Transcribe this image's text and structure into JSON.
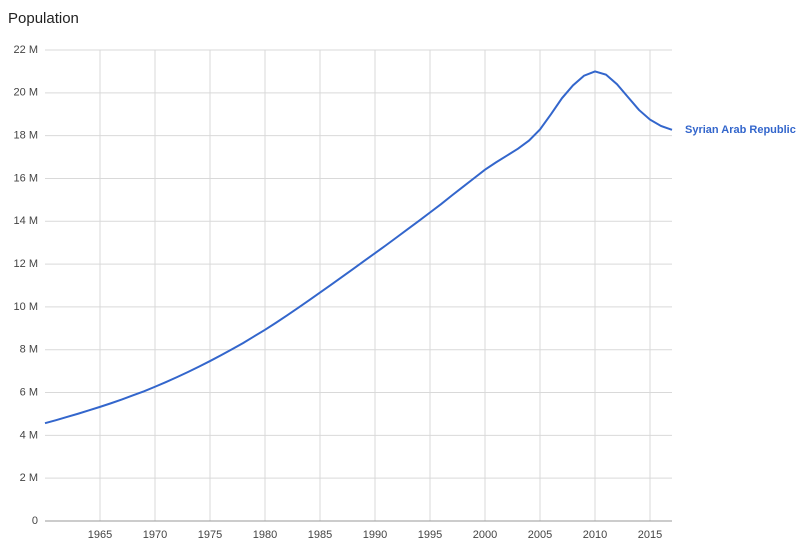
{
  "chart_data": {
    "type": "line",
    "title": "Population",
    "x": [
      1960,
      1961,
      1962,
      1963,
      1964,
      1965,
      1966,
      1967,
      1968,
      1969,
      1970,
      1971,
      1972,
      1973,
      1974,
      1975,
      1976,
      1977,
      1978,
      1979,
      1980,
      1981,
      1982,
      1983,
      1984,
      1985,
      1986,
      1987,
      1988,
      1989,
      1990,
      1991,
      1992,
      1993,
      1994,
      1995,
      1996,
      1997,
      1998,
      1999,
      2000,
      2001,
      2002,
      2003,
      2004,
      2005,
      2006,
      2007,
      2008,
      2009,
      2010,
      2011,
      2012,
      2013,
      2014,
      2015,
      2016,
      2017
    ],
    "series": [
      {
        "name": "Syrian Arab Republic",
        "color": "#3366cc",
        "values": [
          4.57,
          4.71,
          4.86,
          5.01,
          5.17,
          5.33,
          5.5,
          5.68,
          5.87,
          6.06,
          6.27,
          6.49,
          6.72,
          6.96,
          7.21,
          7.47,
          7.74,
          8.02,
          8.31,
          8.62,
          8.93,
          9.26,
          9.6,
          9.95,
          10.31,
          10.67,
          11.03,
          11.4,
          11.77,
          12.14,
          12.51,
          12.88,
          13.26,
          13.64,
          14.02,
          14.41,
          14.8,
          15.21,
          15.61,
          16.01,
          16.41,
          16.75,
          17.07,
          17.39,
          17.77,
          18.29,
          19.0,
          19.75,
          20.35,
          20.8,
          21.0,
          20.85,
          20.4,
          19.8,
          19.2,
          18.75,
          18.45,
          18.27
        ]
      }
    ],
    "xlim": [
      1960,
      2017
    ],
    "xticks": [
      1965,
      1970,
      1975,
      1980,
      1985,
      1990,
      1995,
      2000,
      2005,
      2010,
      2015
    ],
    "ylim": [
      0,
      22
    ],
    "yticks": [
      0,
      {
        "value": 2,
        "label": "2 M"
      },
      {
        "value": 4,
        "label": "4 M"
      },
      {
        "value": 6,
        "label": "6 M"
      },
      {
        "value": 8,
        "label": "8 M"
      },
      {
        "value": 10,
        "label": "10 M"
      },
      {
        "value": 12,
        "label": "12 M"
      },
      {
        "value": 14,
        "label": "14 M"
      },
      {
        "value": 16,
        "label": "16 M"
      },
      {
        "value": 18,
        "label": "18 M"
      },
      {
        "value": 20,
        "label": "20 M"
      },
      {
        "value": 22,
        "label": "22 M"
      }
    ],
    "grid": true
  }
}
